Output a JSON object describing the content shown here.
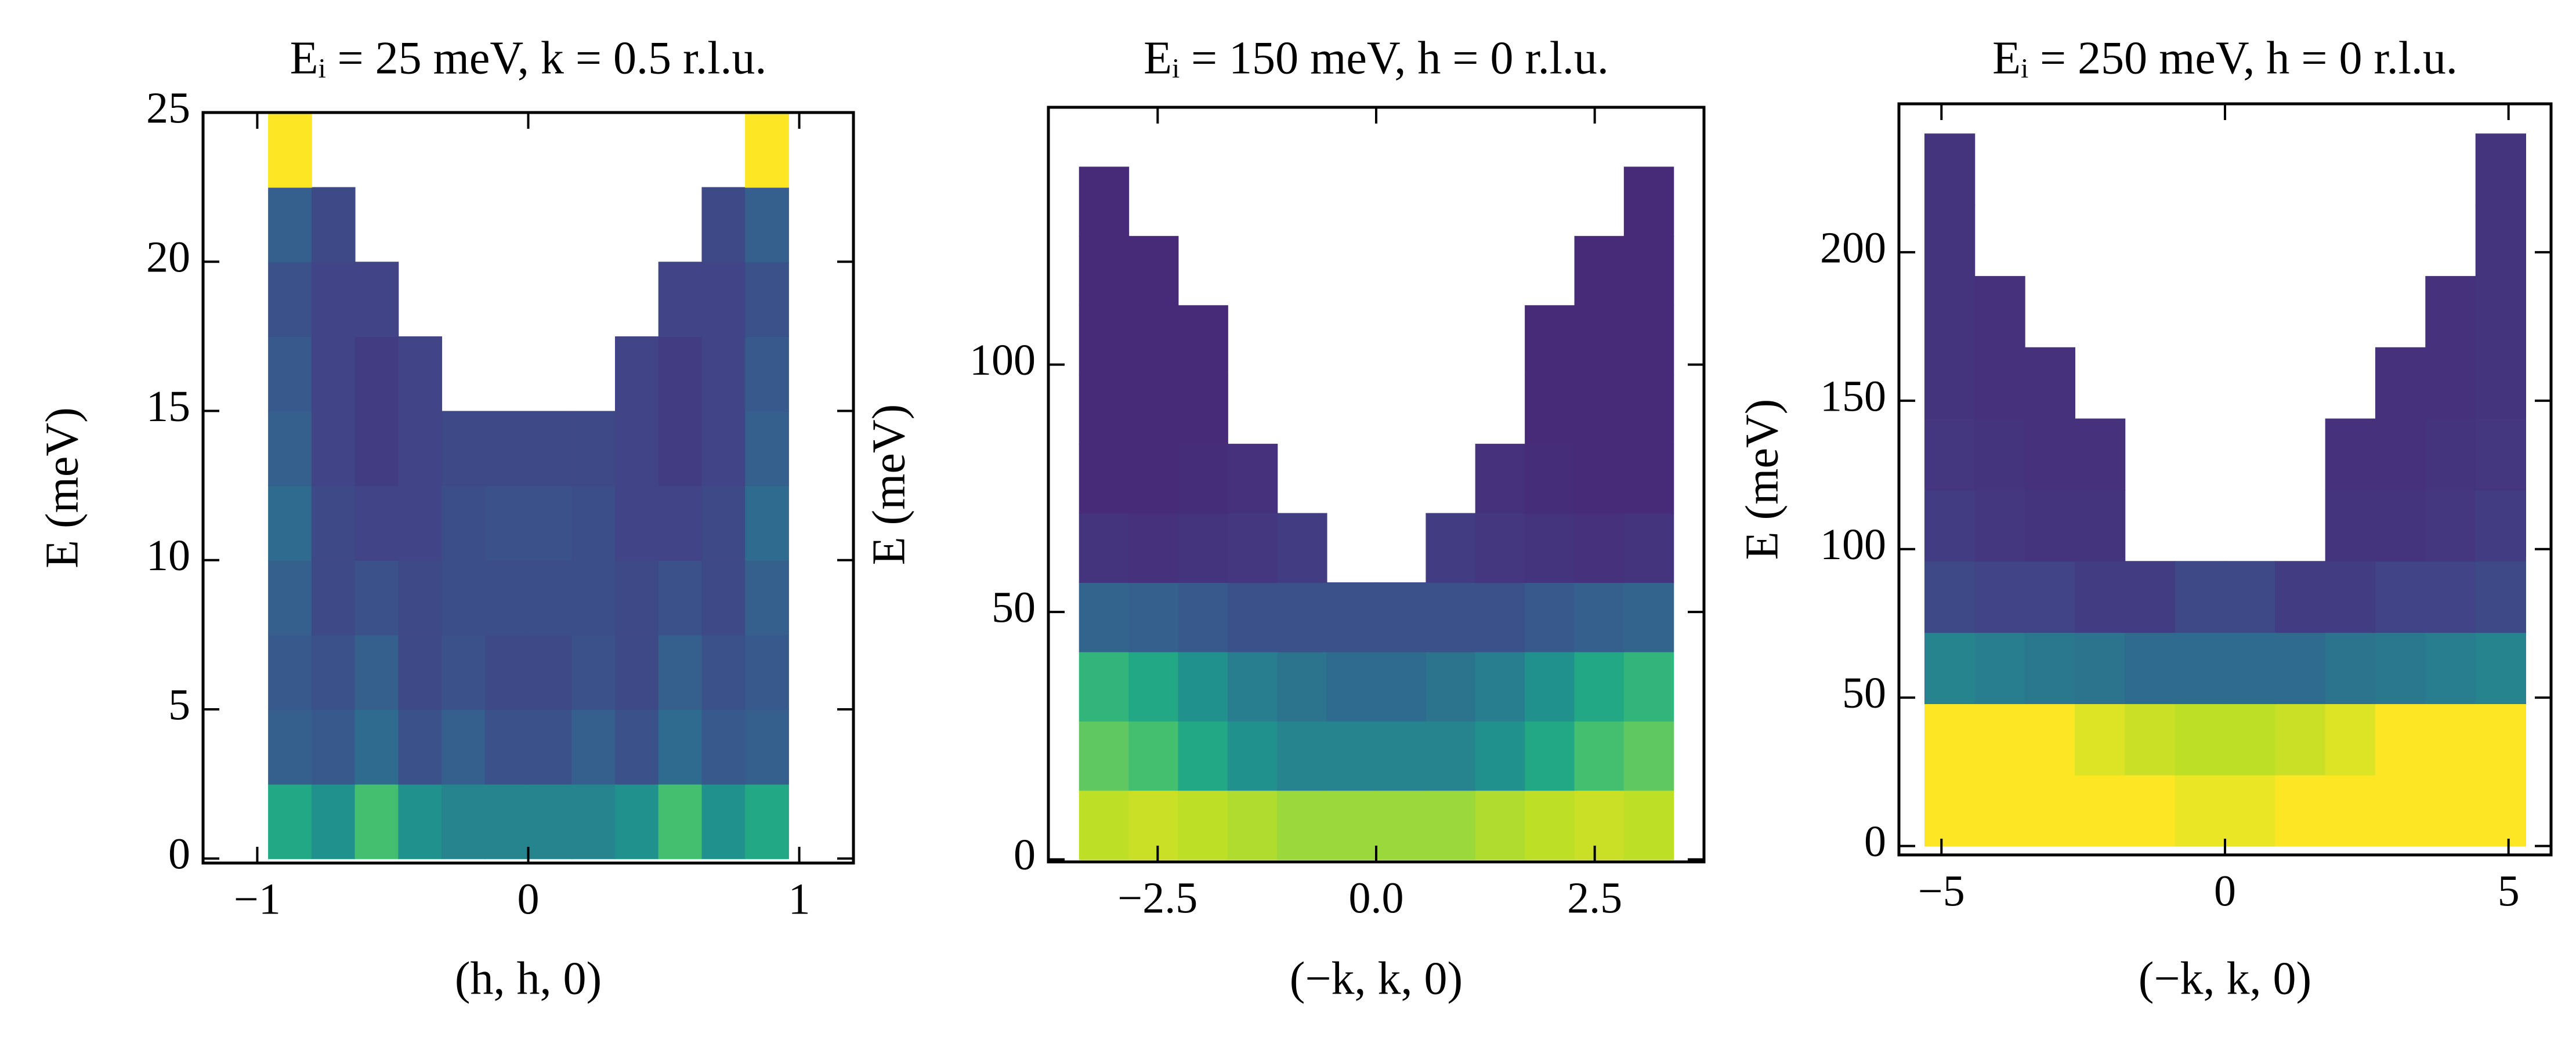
{
  "chart_data": [
    {
      "type": "heatmap",
      "title": "Eᵢ = 25 meV, k = 0.5 r.l.u.",
      "xlabel": "(h, h, 0)",
      "ylabel": "E (meV)",
      "colormap": "viridis",
      "zlim": [
        0,
        1
      ],
      "xlim": [
        -1.2,
        1.2
      ],
      "ylim": [
        -0.15,
        25
      ],
      "xticks": [
        {
          "value": -1,
          "label": "−1"
        },
        0,
        1
      ],
      "yticks": [
        0,
        5,
        10,
        15,
        20,
        25
      ],
      "xbins": [
        -0.96,
        -0.8,
        -0.64,
        -0.48,
        -0.32,
        -0.16,
        0,
        0.16,
        0.32,
        0.48,
        0.64,
        0.8,
        0.96
      ],
      "ybins": [
        0,
        2.5,
        5,
        7.5,
        10,
        12.5,
        15,
        17.5,
        20,
        22.5,
        25
      ],
      "z": [
        [
          0.6,
          0.5,
          0.7,
          0.5,
          0.45,
          0.45,
          0.45,
          0.45,
          0.5,
          0.7,
          0.5,
          0.6
        ],
        [
          0.3,
          0.28,
          0.35,
          0.25,
          0.3,
          0.25,
          0.25,
          0.3,
          0.25,
          0.35,
          0.28,
          0.3
        ],
        [
          0.28,
          0.25,
          0.3,
          0.22,
          0.25,
          0.22,
          0.22,
          0.25,
          0.22,
          0.3,
          0.25,
          0.28
        ],
        [
          0.3,
          0.22,
          0.25,
          0.22,
          0.24,
          0.24,
          0.24,
          0.24,
          0.22,
          0.25,
          0.22,
          0.3
        ],
        [
          0.35,
          0.22,
          0.2,
          0.2,
          0.24,
          0.25,
          0.25,
          0.24,
          0.2,
          0.2,
          0.22,
          0.35
        ],
        [
          0.3,
          0.2,
          0.18,
          0.2,
          0.22,
          0.22,
          0.22,
          0.22,
          0.2,
          0.18,
          0.2,
          0.3
        ],
        [
          0.28,
          0.2,
          0.18,
          0.2,
          null,
          null,
          null,
          null,
          0.2,
          0.18,
          0.2,
          0.28
        ],
        [
          0.25,
          0.2,
          0.2,
          null,
          null,
          null,
          null,
          null,
          null,
          0.2,
          0.2,
          0.25
        ],
        [
          0.3,
          0.22,
          null,
          null,
          null,
          null,
          null,
          null,
          null,
          null,
          0.22,
          0.3
        ],
        [
          1,
          null,
          null,
          null,
          null,
          null,
          null,
          null,
          null,
          null,
          null,
          1
        ]
      ]
    },
    {
      "type": "heatmap",
      "title": "Eᵢ = 150 meV, h = 0 r.l.u.",
      "xlabel": "(−k, k, 0)",
      "ylabel": "E (meV)",
      "colormap": "viridis",
      "zlim": [
        0,
        1
      ],
      "xlim": [
        -3.75,
        3.75
      ],
      "ylim": [
        -0.5,
        152
      ],
      "xticks": [
        {
          "value": -2.5,
          "label": "−2.5"
        },
        {
          "value": 0,
          "label": "0.0"
        },
        2.5
      ],
      "yticks": [
        0,
        50,
        100
      ],
      "xbins": [
        -3.4,
        -2.833,
        -2.267,
        -1.7,
        -1.133,
        -0.567,
        0,
        0.567,
        1.133,
        1.7,
        2.267,
        2.833,
        3.4
      ],
      "ybins": [
        0,
        14,
        28,
        42,
        56,
        70,
        84,
        98,
        112,
        126,
        140
      ],
      "z": [
        [
          0.9,
          0.92,
          0.9,
          0.88,
          0.85,
          0.85,
          0.85,
          0.85,
          0.88,
          0.9,
          0.92,
          0.9
        ],
        [
          0.75,
          0.7,
          0.6,
          0.5,
          0.45,
          0.45,
          0.45,
          0.45,
          0.5,
          0.6,
          0.7,
          0.75
        ],
        [
          0.65,
          0.6,
          0.5,
          0.42,
          0.38,
          0.35,
          0.35,
          0.38,
          0.42,
          0.5,
          0.6,
          0.65
        ],
        [
          0.32,
          0.3,
          0.28,
          0.25,
          0.25,
          0.25,
          0.25,
          0.25,
          0.25,
          0.28,
          0.3,
          0.32
        ],
        [
          0.15,
          0.14,
          0.15,
          0.16,
          0.18,
          null,
          null,
          0.18,
          0.16,
          0.15,
          0.14,
          0.15
        ],
        [
          0.12,
          0.12,
          0.13,
          0.14,
          null,
          null,
          null,
          null,
          0.14,
          0.13,
          0.12,
          0.12
        ],
        [
          0.12,
          0.12,
          0.12,
          null,
          null,
          null,
          null,
          null,
          null,
          0.12,
          0.12,
          0.12
        ],
        [
          0.12,
          0.12,
          0.12,
          null,
          null,
          null,
          null,
          null,
          null,
          0.12,
          0.12,
          0.12
        ],
        [
          0.12,
          0.12,
          null,
          null,
          null,
          null,
          null,
          null,
          null,
          null,
          0.12,
          0.12
        ],
        [
          0.12,
          null,
          null,
          null,
          null,
          null,
          null,
          null,
          null,
          null,
          null,
          0.12
        ]
      ]
    },
    {
      "type": "heatmap",
      "title": "Eᵢ = 250 meV, h = 0 r.l.u.",
      "xlabel": "(−k, k, 0)",
      "ylabel": "E (meV)",
      "colormap": "viridis",
      "zlim": [
        0,
        1
      ],
      "xlim": [
        -5.75,
        5.75
      ],
      "ylim": [
        -3,
        250
      ],
      "xticks": [
        {
          "value": -5,
          "label": "−5"
        },
        0,
        5
      ],
      "yticks": [
        0,
        50,
        100,
        150,
        200
      ],
      "xbins": [
        -5.3,
        -4.417,
        -3.533,
        -2.65,
        -1.767,
        -0.883,
        0,
        0.883,
        1.767,
        2.65,
        3.533,
        4.417,
        5.3
      ],
      "ybins": [
        0,
        24,
        48,
        72,
        96,
        120,
        144,
        168,
        192,
        216,
        240
      ],
      "z": [
        [
          1,
          1,
          1,
          1,
          1,
          0.97,
          0.97,
          1,
          1,
          1,
          1,
          1
        ],
        [
          1,
          1,
          1,
          0.95,
          0.92,
          0.9,
          0.9,
          0.92,
          0.95,
          1,
          1,
          1
        ],
        [
          0.45,
          0.42,
          0.4,
          0.38,
          0.35,
          0.35,
          0.35,
          0.35,
          0.38,
          0.4,
          0.42,
          0.45
        ],
        [
          0.22,
          0.2,
          0.2,
          0.18,
          0.18,
          0.22,
          0.22,
          0.18,
          0.18,
          0.2,
          0.2,
          0.22
        ],
        [
          0.18,
          0.16,
          0.15,
          0.15,
          null,
          null,
          null,
          null,
          0.15,
          0.15,
          0.16,
          0.18
        ],
        [
          0.16,
          0.15,
          0.14,
          0.14,
          null,
          null,
          null,
          null,
          0.14,
          0.14,
          0.15,
          0.16
        ],
        [
          0.15,
          0.14,
          0.14,
          null,
          null,
          null,
          null,
          null,
          null,
          0.14,
          0.14,
          0.15
        ],
        [
          0.15,
          0.14,
          null,
          null,
          null,
          null,
          null,
          null,
          null,
          null,
          0.14,
          0.15
        ],
        [
          0.15,
          null,
          null,
          null,
          null,
          null,
          null,
          null,
          null,
          null,
          null,
          0.15
        ],
        [
          0.15,
          null,
          null,
          null,
          null,
          null,
          null,
          null,
          null,
          null,
          null,
          0.15
        ]
      ]
    }
  ]
}
